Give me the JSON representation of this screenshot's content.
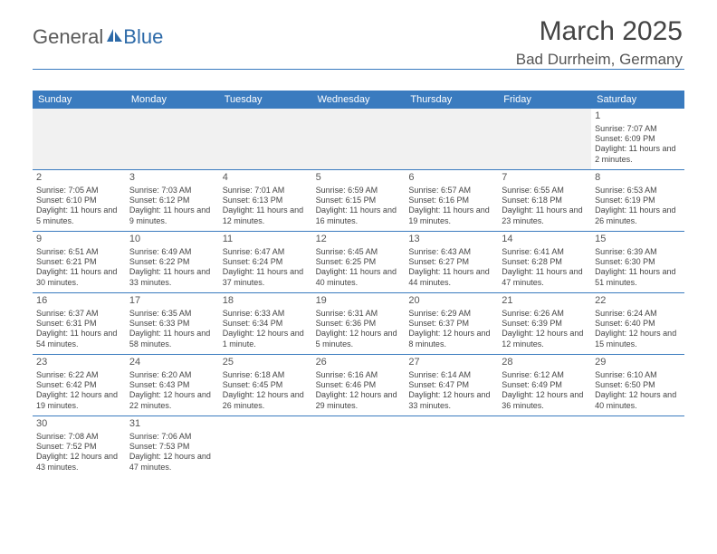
{
  "logo": {
    "part1": "General",
    "part2": "Blue"
  },
  "header": {
    "title": "March 2025",
    "location": "Bad Durrheim, Germany"
  },
  "dayNames": [
    "Sunday",
    "Monday",
    "Tuesday",
    "Wednesday",
    "Thursday",
    "Friday",
    "Saturday"
  ],
  "colors": {
    "accent": "#3a7bbf",
    "text": "#444"
  },
  "weeks": [
    [
      null,
      null,
      null,
      null,
      null,
      null,
      {
        "n": "1",
        "sr": "Sunrise: 7:07 AM",
        "ss": "Sunset: 6:09 PM",
        "dl": "Daylight: 11 hours and 2 minutes."
      }
    ],
    [
      {
        "n": "2",
        "sr": "Sunrise: 7:05 AM",
        "ss": "Sunset: 6:10 PM",
        "dl": "Daylight: 11 hours and 5 minutes."
      },
      {
        "n": "3",
        "sr": "Sunrise: 7:03 AM",
        "ss": "Sunset: 6:12 PM",
        "dl": "Daylight: 11 hours and 9 minutes."
      },
      {
        "n": "4",
        "sr": "Sunrise: 7:01 AM",
        "ss": "Sunset: 6:13 PM",
        "dl": "Daylight: 11 hours and 12 minutes."
      },
      {
        "n": "5",
        "sr": "Sunrise: 6:59 AM",
        "ss": "Sunset: 6:15 PM",
        "dl": "Daylight: 11 hours and 16 minutes."
      },
      {
        "n": "6",
        "sr": "Sunrise: 6:57 AM",
        "ss": "Sunset: 6:16 PM",
        "dl": "Daylight: 11 hours and 19 minutes."
      },
      {
        "n": "7",
        "sr": "Sunrise: 6:55 AM",
        "ss": "Sunset: 6:18 PM",
        "dl": "Daylight: 11 hours and 23 minutes."
      },
      {
        "n": "8",
        "sr": "Sunrise: 6:53 AM",
        "ss": "Sunset: 6:19 PM",
        "dl": "Daylight: 11 hours and 26 minutes."
      }
    ],
    [
      {
        "n": "9",
        "sr": "Sunrise: 6:51 AM",
        "ss": "Sunset: 6:21 PM",
        "dl": "Daylight: 11 hours and 30 minutes."
      },
      {
        "n": "10",
        "sr": "Sunrise: 6:49 AM",
        "ss": "Sunset: 6:22 PM",
        "dl": "Daylight: 11 hours and 33 minutes."
      },
      {
        "n": "11",
        "sr": "Sunrise: 6:47 AM",
        "ss": "Sunset: 6:24 PM",
        "dl": "Daylight: 11 hours and 37 minutes."
      },
      {
        "n": "12",
        "sr": "Sunrise: 6:45 AM",
        "ss": "Sunset: 6:25 PM",
        "dl": "Daylight: 11 hours and 40 minutes."
      },
      {
        "n": "13",
        "sr": "Sunrise: 6:43 AM",
        "ss": "Sunset: 6:27 PM",
        "dl": "Daylight: 11 hours and 44 minutes."
      },
      {
        "n": "14",
        "sr": "Sunrise: 6:41 AM",
        "ss": "Sunset: 6:28 PM",
        "dl": "Daylight: 11 hours and 47 minutes."
      },
      {
        "n": "15",
        "sr": "Sunrise: 6:39 AM",
        "ss": "Sunset: 6:30 PM",
        "dl": "Daylight: 11 hours and 51 minutes."
      }
    ],
    [
      {
        "n": "16",
        "sr": "Sunrise: 6:37 AM",
        "ss": "Sunset: 6:31 PM",
        "dl": "Daylight: 11 hours and 54 minutes."
      },
      {
        "n": "17",
        "sr": "Sunrise: 6:35 AM",
        "ss": "Sunset: 6:33 PM",
        "dl": "Daylight: 11 hours and 58 minutes."
      },
      {
        "n": "18",
        "sr": "Sunrise: 6:33 AM",
        "ss": "Sunset: 6:34 PM",
        "dl": "Daylight: 12 hours and 1 minute."
      },
      {
        "n": "19",
        "sr": "Sunrise: 6:31 AM",
        "ss": "Sunset: 6:36 PM",
        "dl": "Daylight: 12 hours and 5 minutes."
      },
      {
        "n": "20",
        "sr": "Sunrise: 6:29 AM",
        "ss": "Sunset: 6:37 PM",
        "dl": "Daylight: 12 hours and 8 minutes."
      },
      {
        "n": "21",
        "sr": "Sunrise: 6:26 AM",
        "ss": "Sunset: 6:39 PM",
        "dl": "Daylight: 12 hours and 12 minutes."
      },
      {
        "n": "22",
        "sr": "Sunrise: 6:24 AM",
        "ss": "Sunset: 6:40 PM",
        "dl": "Daylight: 12 hours and 15 minutes."
      }
    ],
    [
      {
        "n": "23",
        "sr": "Sunrise: 6:22 AM",
        "ss": "Sunset: 6:42 PM",
        "dl": "Daylight: 12 hours and 19 minutes."
      },
      {
        "n": "24",
        "sr": "Sunrise: 6:20 AM",
        "ss": "Sunset: 6:43 PM",
        "dl": "Daylight: 12 hours and 22 minutes."
      },
      {
        "n": "25",
        "sr": "Sunrise: 6:18 AM",
        "ss": "Sunset: 6:45 PM",
        "dl": "Daylight: 12 hours and 26 minutes."
      },
      {
        "n": "26",
        "sr": "Sunrise: 6:16 AM",
        "ss": "Sunset: 6:46 PM",
        "dl": "Daylight: 12 hours and 29 minutes."
      },
      {
        "n": "27",
        "sr": "Sunrise: 6:14 AM",
        "ss": "Sunset: 6:47 PM",
        "dl": "Daylight: 12 hours and 33 minutes."
      },
      {
        "n": "28",
        "sr": "Sunrise: 6:12 AM",
        "ss": "Sunset: 6:49 PM",
        "dl": "Daylight: 12 hours and 36 minutes."
      },
      {
        "n": "29",
        "sr": "Sunrise: 6:10 AM",
        "ss": "Sunset: 6:50 PM",
        "dl": "Daylight: 12 hours and 40 minutes."
      }
    ],
    [
      {
        "n": "30",
        "sr": "Sunrise: 7:08 AM",
        "ss": "Sunset: 7:52 PM",
        "dl": "Daylight: 12 hours and 43 minutes."
      },
      {
        "n": "31",
        "sr": "Sunrise: 7:06 AM",
        "ss": "Sunset: 7:53 PM",
        "dl": "Daylight: 12 hours and 47 minutes."
      },
      null,
      null,
      null,
      null,
      null
    ]
  ]
}
